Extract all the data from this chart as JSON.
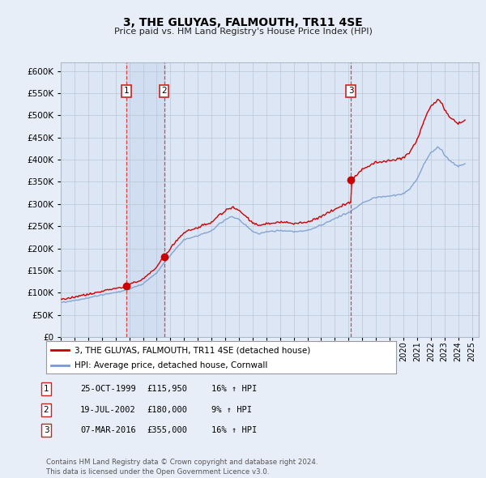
{
  "title": "3, THE GLUYAS, FALMOUTH, TR11 4SE",
  "subtitle": "Price paid vs. HM Land Registry's House Price Index (HPI)",
  "ylim": [
    0,
    620000
  ],
  "yticks": [
    0,
    50000,
    100000,
    150000,
    200000,
    250000,
    300000,
    350000,
    400000,
    450000,
    500000,
    550000,
    600000
  ],
  "xlim_start": 1995.0,
  "xlim_end": 2025.5,
  "background_color": "#e8eef8",
  "plot_bg_color": "#dce6f5",
  "grid_color": "#b8c8d8",
  "hpi_line_color": "#7799cc",
  "price_line_color": "#cc0000",
  "sale_marker_color": "#cc0000",
  "vline_color": "#dd3333",
  "annotation_box_color": "#cc2222",
  "shade_between_sales": true,
  "sales": [
    {
      "date_num": 1999.81,
      "price": 115950,
      "label": "1"
    },
    {
      "date_num": 2002.54,
      "price": 180000,
      "label": "2"
    },
    {
      "date_num": 2016.18,
      "price": 355000,
      "label": "3"
    }
  ],
  "sale_table": [
    {
      "num": "1",
      "date": "25-OCT-1999",
      "price": "£115,950",
      "pct": "16% ↑ HPI"
    },
    {
      "num": "2",
      "date": "19-JUL-2002",
      "price": "£180,000",
      "pct": "9% ↑ HPI"
    },
    {
      "num": "3",
      "date": "07-MAR-2016",
      "price": "£355,000",
      "pct": "16% ↑ HPI"
    }
  ],
  "legend_label_price": "3, THE GLUYAS, FALMOUTH, TR11 4SE (detached house)",
  "legend_label_hpi": "HPI: Average price, detached house, Cornwall",
  "footer": "Contains HM Land Registry data © Crown copyright and database right 2024.\nThis data is licensed under the Open Government Licence v3.0."
}
